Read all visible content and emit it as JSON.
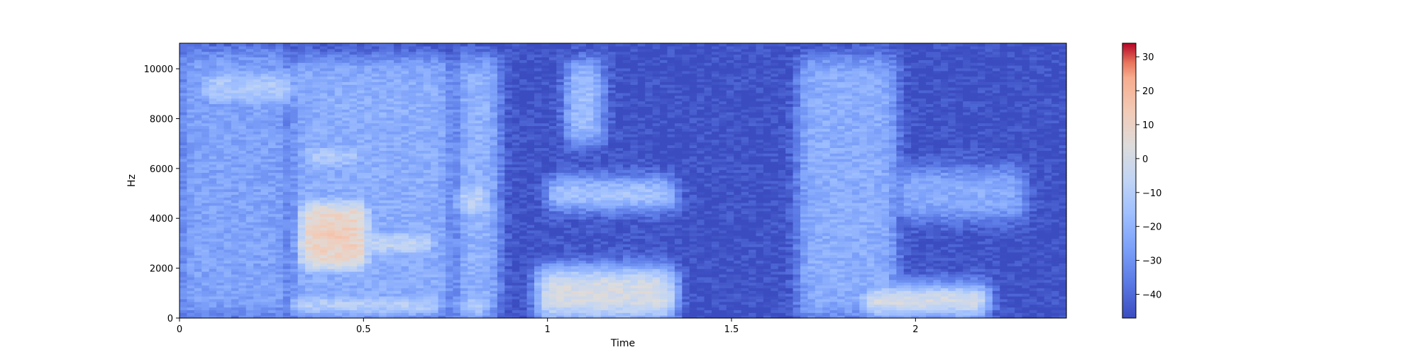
{
  "chart_data": {
    "type": "heatmap",
    "subtype": "spectrogram",
    "xlabel": "Time",
    "ylabel": "Hz",
    "xlim": [
      0,
      2.41
    ],
    "ylim": [
      0,
      11025
    ],
    "x_ticks": [
      0,
      0.5,
      1,
      1.5,
      2
    ],
    "x_tick_labels": [
      "0",
      "0.5",
      "1",
      "1.5",
      "2"
    ],
    "y_ticks": [
      0,
      2000,
      4000,
      6000,
      8000,
      10000
    ],
    "y_tick_labels": [
      "0",
      "2000",
      "4000",
      "6000",
      "8000",
      "10000"
    ],
    "colormap": "coolwarm",
    "colorbar": {
      "range": [
        -47,
        34
      ],
      "ticks": [
        30,
        20,
        10,
        0,
        -10,
        -20,
        -30,
        -40
      ],
      "tick_labels": [
        "30",
        "20",
        "10",
        "0",
        "−10",
        "−20",
        "−30",
        "−40"
      ]
    },
    "regions": [
      {
        "t": [
          0.0,
          0.3
        ],
        "f": [
          0,
          10800
        ],
        "db": -25
      },
      {
        "t": [
          0.05,
          0.32
        ],
        "f": [
          8500,
          10000
        ],
        "db": -8
      },
      {
        "t": [
          0.3,
          0.74
        ],
        "f": [
          0,
          10500
        ],
        "db": -22
      },
      {
        "t": [
          0.32,
          0.5
        ],
        "f": [
          6000,
          7000
        ],
        "db": -2
      },
      {
        "t": [
          0.32,
          0.52
        ],
        "f": [
          1800,
          4800
        ],
        "db": 12
      },
      {
        "t": [
          0.45,
          0.7
        ],
        "f": [
          2500,
          3500
        ],
        "db": 5
      },
      {
        "t": [
          0.3,
          0.72
        ],
        "f": [
          300,
          800
        ],
        "db": 22
      },
      {
        "t": [
          0.75,
          0.87
        ],
        "f": [
          0,
          10500
        ],
        "db": -20
      },
      {
        "t": [
          0.75,
          0.85
        ],
        "f": [
          4000,
          5500
        ],
        "db": -2
      },
      {
        "t": [
          0.75,
          0.85
        ],
        "f": [
          200,
          800
        ],
        "db": 14
      },
      {
        "t": [
          0.97,
          1.35
        ],
        "f": [
          0,
          2000
        ],
        "db": 3
      },
      {
        "t": [
          1.0,
          1.35
        ],
        "f": [
          4500,
          5500
        ],
        "db": -5
      },
      {
        "t": [
          1.05,
          1.15
        ],
        "f": [
          7000,
          10300
        ],
        "db": -15
      },
      {
        "t": [
          1.68,
          1.95
        ],
        "f": [
          0,
          10500
        ],
        "db": -22
      },
      {
        "t": [
          1.7,
          1.9
        ],
        "f": [
          1800,
          2200
        ],
        "db": 8
      },
      {
        "t": [
          1.75,
          1.87
        ],
        "f": [
          3800,
          4300
        ],
        "db": 3
      },
      {
        "t": [
          1.85,
          2.2
        ],
        "f": [
          200,
          1200
        ],
        "db": 14
      },
      {
        "t": [
          1.95,
          2.3
        ],
        "f": [
          4000,
          6000
        ],
        "db": -22
      }
    ]
  },
  "palette": {
    "low": "#3b4cc0",
    "mid": "#dddddd",
    "high": "#b40426"
  }
}
